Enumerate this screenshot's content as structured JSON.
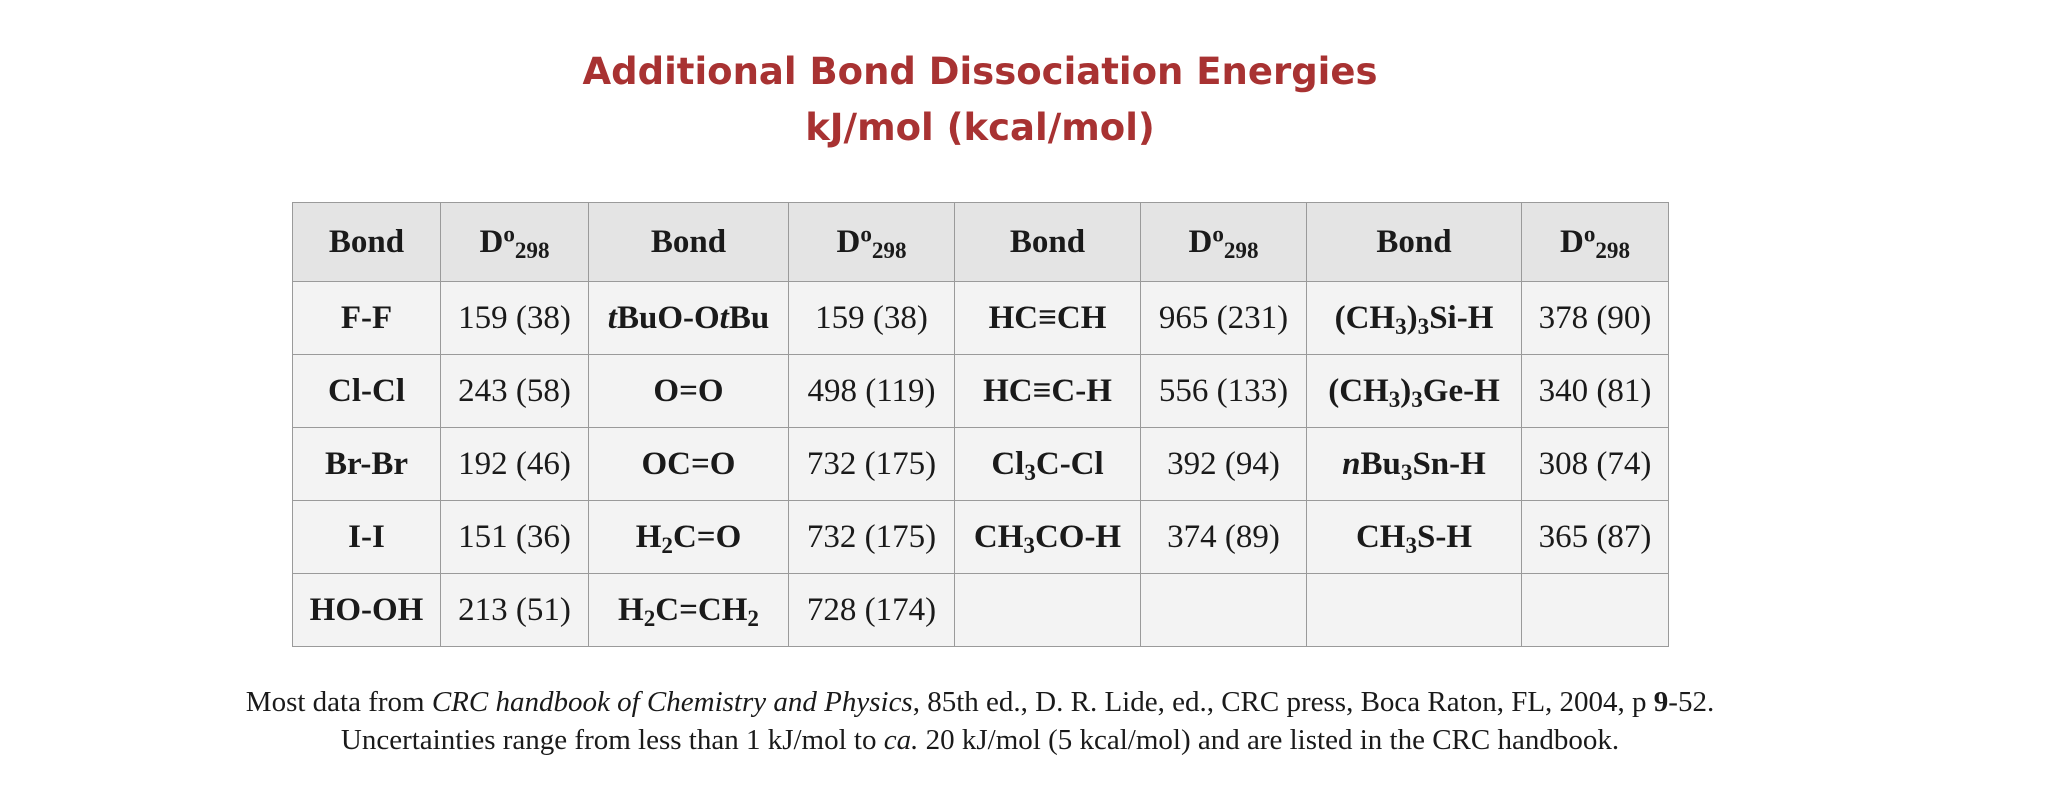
{
  "title": {
    "line1": "Additional Bond Dissociation Energies",
    "line2": "kJ/mol (kcal/mol)"
  },
  "table": {
    "headers": [
      {
        "bond": "Bond",
        "d_main": "D",
        "d_sup": "o",
        "d_sub": "298"
      },
      {
        "bond": "Bond",
        "d_main": "D",
        "d_sup": "o",
        "d_sub": "298"
      },
      {
        "bond": "Bond",
        "d_main": "D",
        "d_sup": "o",
        "d_sub": "298"
      },
      {
        "bond": "Bond",
        "d_main": "D",
        "d_sup": "o",
        "d_sub": "298"
      }
    ],
    "rows": [
      [
        {
          "bond": [
            {
              "t": "F-F"
            }
          ],
          "value": "159 (38)"
        },
        {
          "bond": [
            {
              "t": "t",
              "i": true
            },
            {
              "t": "BuO-O"
            },
            {
              "t": "t",
              "i": true
            },
            {
              "t": "Bu"
            }
          ],
          "value": "159 (38)"
        },
        {
          "bond": [
            {
              "t": "HC≡CH"
            }
          ],
          "value": "965 (231)"
        },
        {
          "bond": [
            {
              "t": "(CH"
            },
            {
              "t": "3",
              "sub": true
            },
            {
              "t": ")"
            },
            {
              "t": "3",
              "sub": true
            },
            {
              "t": "Si-H"
            }
          ],
          "value": "378 (90)"
        }
      ],
      [
        {
          "bond": [
            {
              "t": "Cl-Cl"
            }
          ],
          "value": "243 (58)"
        },
        {
          "bond": [
            {
              "t": "O=O"
            }
          ],
          "value": "498 (119)"
        },
        {
          "bond": [
            {
              "t": "HC≡C-H"
            }
          ],
          "value": "556 (133)"
        },
        {
          "bond": [
            {
              "t": "(CH"
            },
            {
              "t": "3",
              "sub": true
            },
            {
              "t": ")"
            },
            {
              "t": "3",
              "sub": true
            },
            {
              "t": "Ge-H"
            }
          ],
          "value": "340 (81)"
        }
      ],
      [
        {
          "bond": [
            {
              "t": "Br-Br"
            }
          ],
          "value": "192 (46)"
        },
        {
          "bond": [
            {
              "t": "OC=O"
            }
          ],
          "value": "732 (175)"
        },
        {
          "bond": [
            {
              "t": "Cl"
            },
            {
              "t": "3",
              "sub": true
            },
            {
              "t": "C-Cl"
            }
          ],
          "value": "392 (94)"
        },
        {
          "bond": [
            {
              "t": "n",
              "i": true
            },
            {
              "t": "Bu"
            },
            {
              "t": "3",
              "sub": true
            },
            {
              "t": "Sn-H"
            }
          ],
          "value": "308 (74)"
        }
      ],
      [
        {
          "bond": [
            {
              "t": "I-I"
            }
          ],
          "value": "151 (36)"
        },
        {
          "bond": [
            {
              "t": "H"
            },
            {
              "t": "2",
              "sub": true
            },
            {
              "t": "C=O"
            }
          ],
          "value": "732 (175)"
        },
        {
          "bond": [
            {
              "t": "CH"
            },
            {
              "t": "3",
              "sub": true
            },
            {
              "t": "CO-H"
            }
          ],
          "value": "374 (89)"
        },
        {
          "bond": [
            {
              "t": "CH"
            },
            {
              "t": "3",
              "sub": true
            },
            {
              "t": "S-H"
            }
          ],
          "value": "365 (87)"
        }
      ],
      [
        {
          "bond": [
            {
              "t": "HO-OH"
            }
          ],
          "value": "213 (51)"
        },
        {
          "bond": [
            {
              "t": "H"
            },
            {
              "t": "2",
              "sub": true
            },
            {
              "t": "C=CH"
            },
            {
              "t": "2",
              "sub": true
            }
          ],
          "value": "728 (174)"
        },
        {
          "bond": [],
          "value": ""
        },
        {
          "bond": [],
          "value": ""
        }
      ]
    ]
  },
  "footnote": {
    "line1_before": "Most data from ",
    "line1_source": "CRC handbook of Chemistry and Physics",
    "line1_after": ", 85th ed., D. R. Lide, ed., CRC press, Boca Raton, FL, 2004, p ",
    "line1_page_bold": "9",
    "line1_page_rest": "-52.",
    "line2_before": "Uncertainties range from less than 1 kJ/mol to ",
    "line2_ca": "ca.",
    "line2_after": " 20 kJ/mol (5 kcal/mol) and are listed in the CRC handbook."
  }
}
